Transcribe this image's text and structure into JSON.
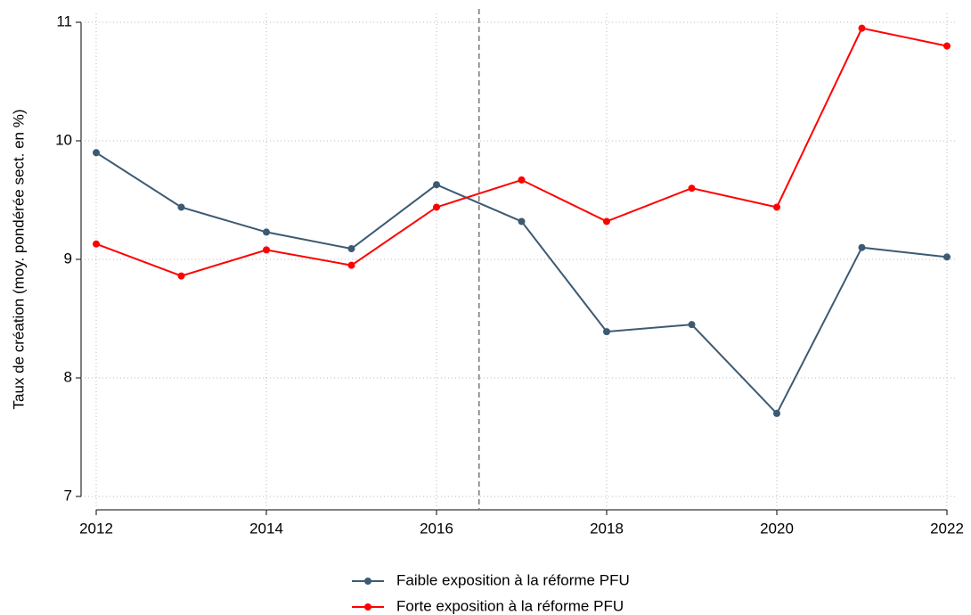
{
  "chart_data": {
    "type": "line",
    "y_label": "Taux de création (moy. pondérée sect. en %)",
    "x": [
      2012,
      2013,
      2014,
      2015,
      2016,
      2017,
      2018,
      2019,
      2020,
      2021,
      2022
    ],
    "series": [
      {
        "name": "Faible exposition à la réforme PFU",
        "color": "#3d5a73",
        "values": [
          9.9,
          9.44,
          9.23,
          9.09,
          9.63,
          9.32,
          8.39,
          8.45,
          7.7,
          9.1,
          9.02
        ]
      },
      {
        "name": "Forte exposition à la réforme PFU",
        "color": "#ff0000",
        "values": [
          9.13,
          8.86,
          9.08,
          8.95,
          9.44,
          9.67,
          9.32,
          9.6,
          9.44,
          10.95,
          10.8
        ]
      }
    ],
    "xlim": [
      2012,
      2022
    ],
    "xticks": [
      2012,
      2014,
      2016,
      2018,
      2020,
      2022
    ],
    "ylim": [
      7,
      11
    ],
    "yticks": [
      7,
      8,
      9,
      10,
      11
    ],
    "vline": 2016.5,
    "grid": true,
    "legend": "bottom"
  }
}
